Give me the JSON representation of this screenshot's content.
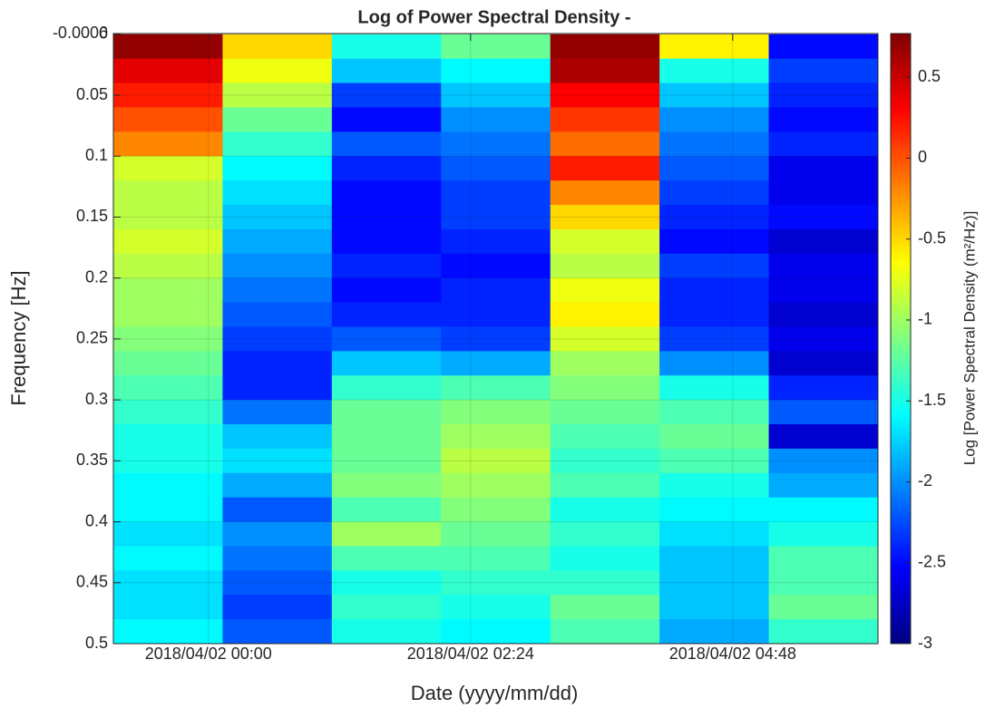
{
  "chart_data": {
    "type": "heatmap",
    "title": "Log of Power Spectral Density -",
    "x_label": "Date (yyyy/mm/dd)",
    "y_label": "Frequency [Hz]",
    "colorbar_label": "Log [Power Spectral Density (m²/Hz)]",
    "x_edges": [
      -0.87,
      0.13,
      1.13,
      2.13,
      3.13,
      4.13,
      5.13,
      6.13
    ],
    "y_edges": [
      0,
      0.02,
      0.04,
      0.06,
      0.08,
      0.1,
      0.12,
      0.14,
      0.16,
      0.18,
      0.2,
      0.22,
      0.24,
      0.26,
      0.28,
      0.3,
      0.32,
      0.34,
      0.36,
      0.38,
      0.4,
      0.42,
      0.44,
      0.46,
      0.48,
      0.5
    ],
    "z": [
      [
        0.7,
        0.4,
        0.2,
        0.0,
        -0.2,
        -0.8,
        -0.9,
        -0.9,
        -0.8,
        -0.9,
        -1.0,
        -1.0,
        -1.1,
        -1.2,
        -1.3,
        -1.4,
        -1.5,
        -1.5,
        -1.6,
        -1.6,
        -1.7,
        -1.6,
        -1.7,
        -1.7,
        -1.6
      ],
      [
        -0.5,
        -0.7,
        -0.9,
        -1.2,
        -1.4,
        -1.6,
        -1.7,
        -1.8,
        -1.9,
        -2.0,
        -2.1,
        -2.2,
        -2.3,
        -2.4,
        -2.4,
        -2.1,
        -1.8,
        -1.7,
        -1.9,
        -2.2,
        -2.0,
        -2.1,
        -2.2,
        -2.3,
        -2.2
      ],
      [
        -1.5,
        -1.8,
        -2.3,
        -2.5,
        -2.2,
        -2.4,
        -2.5,
        -2.5,
        -2.5,
        -2.4,
        -2.5,
        -2.4,
        -2.2,
        -1.8,
        -1.4,
        -1.2,
        -1.2,
        -1.2,
        -1.1,
        -1.3,
        -1.0,
        -1.3,
        -1.5,
        -1.4,
        -1.5
      ],
      [
        -1.2,
        -1.6,
        -1.8,
        -2.0,
        -2.1,
        -2.2,
        -2.3,
        -2.3,
        -2.4,
        -2.5,
        -2.4,
        -2.4,
        -2.3,
        -1.9,
        -1.3,
        -1.1,
        -1.0,
        -0.9,
        -1.0,
        -1.1,
        -1.2,
        -1.3,
        -1.4,
        -1.5,
        -1.6
      ],
      [
        0.7,
        0.6,
        0.3,
        0.1,
        -0.1,
        0.2,
        -0.2,
        -0.5,
        -0.8,
        -0.9,
        -0.7,
        -0.6,
        -0.8,
        -1.0,
        -1.1,
        -1.2,
        -1.3,
        -1.4,
        -1.3,
        -1.5,
        -1.4,
        -1.5,
        -1.4,
        -1.2,
        -1.3
      ],
      [
        -0.6,
        -1.5,
        -1.8,
        -2.0,
        -2.1,
        -2.2,
        -2.3,
        -2.4,
        -2.5,
        -2.3,
        -2.4,
        -2.4,
        -2.3,
        -2.0,
        -1.5,
        -1.3,
        -1.2,
        -1.3,
        -1.5,
        -1.6,
        -1.7,
        -1.8,
        -1.8,
        -1.8,
        -1.9
      ],
      [
        -2.5,
        -2.3,
        -2.4,
        -2.5,
        -2.4,
        -2.6,
        -2.6,
        -2.5,
        -2.7,
        -2.6,
        -2.6,
        -2.7,
        -2.6,
        -2.7,
        -2.4,
        -2.2,
        -2.7,
        -2.0,
        -1.9,
        -1.6,
        -1.5,
        -1.3,
        -1.3,
        -1.2,
        -1.4
      ]
    ],
    "xlim": [
      -0.87,
      6.13
    ],
    "xticks": [
      {
        "value": 0,
        "label": "2018/04/02 00:00"
      },
      {
        "value": 2.4,
        "label": "2018/04/02 02:24"
      },
      {
        "value": 4.8,
        "label": "2018/04/02 04:48"
      }
    ],
    "ylim": [
      -0.0006,
      0.5
    ],
    "yticks": [
      -0.0006,
      0,
      0.05,
      0.1,
      0.15,
      0.2,
      0.25,
      0.3,
      0.35,
      0.4,
      0.45,
      0.5
    ],
    "clim": [
      -3,
      0.77
    ],
    "cticks": [
      -3,
      -2.5,
      -2,
      -1.5,
      -1,
      -0.5,
      0,
      0.5
    ],
    "colormap": "jet",
    "grid": true
  }
}
